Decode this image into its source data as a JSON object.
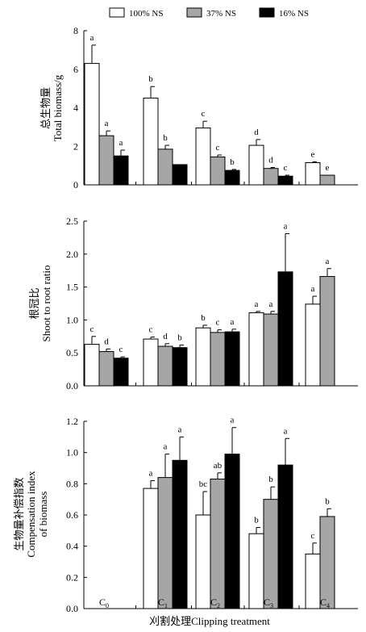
{
  "legend": {
    "items": [
      {
        "label": "100% NS",
        "color": "#ffffff"
      },
      {
        "label": "37% NS",
        "color": "#a6a6a6"
      },
      {
        "label": "16% NS",
        "color": "#000000"
      }
    ]
  },
  "x_axis": {
    "title": "刈割处理Clipping  treatment",
    "categories": [
      {
        "main": "C",
        "sub": "0"
      },
      {
        "main": "C",
        "sub": "1"
      },
      {
        "main": "C",
        "sub": "2"
      },
      {
        "main": "C",
        "sub": "3"
      },
      {
        "main": "C",
        "sub": "4"
      }
    ]
  },
  "chart_data": [
    {
      "type": "bar",
      "ylabel_cn": "总生物量",
      "ylabel_en": "Total biomass/g",
      "ylim": [
        0,
        8
      ],
      "yticks": [
        "0",
        "2",
        "4",
        "6",
        "8"
      ],
      "categories": [
        "C0",
        "C1",
        "C2",
        "C3",
        "C4"
      ],
      "series": [
        {
          "name": "100% NS",
          "values": [
            6.3,
            4.5,
            2.95,
            2.05,
            1.15
          ],
          "errors": [
            0.95,
            0.6,
            0.35,
            0.3,
            0.05
          ],
          "labels": [
            "a",
            "b",
            "c",
            "d",
            "e"
          ]
        },
        {
          "name": "37% NS",
          "values": [
            2.55,
            1.85,
            1.45,
            0.85,
            0.5
          ],
          "errors": [
            0.25,
            0.2,
            0.1,
            0.05,
            0.0
          ],
          "labels": [
            "a",
            "b",
            "c",
            "d",
            "e"
          ]
        },
        {
          "name": "16% NS",
          "values": [
            1.5,
            1.05,
            0.75,
            0.45,
            null
          ],
          "errors": [
            0.3,
            0.0,
            0.05,
            0.05,
            null
          ],
          "labels": [
            "a",
            "",
            "b",
            "c",
            ""
          ]
        }
      ]
    },
    {
      "type": "bar",
      "ylabel_cn": "根冠比",
      "ylabel_en": "Shoot to root ratio",
      "ylim": [
        0,
        2.5
      ],
      "yticks": [
        "0.0",
        "0.5",
        "1.0",
        "1.5",
        "2.0",
        "2.5"
      ],
      "categories": [
        "C0",
        "C1",
        "C2",
        "C3",
        "C4"
      ],
      "series": [
        {
          "name": "100% NS",
          "values": [
            0.63,
            0.71,
            0.88,
            1.11,
            1.24
          ],
          "errors": [
            0.12,
            0.03,
            0.04,
            0.02,
            0.12
          ],
          "labels": [
            "c",
            "c",
            "b",
            "a",
            "a"
          ]
        },
        {
          "name": "37% NS",
          "values": [
            0.52,
            0.6,
            0.81,
            1.09,
            1.66
          ],
          "errors": [
            0.04,
            0.04,
            0.04,
            0.04,
            0.12
          ],
          "labels": [
            "d",
            "d",
            "c",
            "a",
            "a"
          ]
        },
        {
          "name": "16% NS",
          "values": [
            0.42,
            0.58,
            0.82,
            1.73,
            null
          ],
          "errors": [
            0.02,
            0.04,
            0.04,
            0.58,
            null
          ],
          "labels": [
            "c",
            "b",
            "a",
            "a",
            ""
          ]
        }
      ]
    },
    {
      "type": "bar",
      "ylabel_cn": "生物量补偿指数",
      "ylabel_en1": "Compensation index",
      "ylabel_en2": "of biomass",
      "ylim": [
        0,
        1.2
      ],
      "yticks": [
        "0.0",
        "0.2",
        "0.4",
        "0.6",
        "0.8",
        "1.0",
        "1.2"
      ],
      "categories": [
        "C0",
        "C1",
        "C2",
        "C3",
        "C4"
      ],
      "series": [
        {
          "name": "100% NS",
          "values": [
            null,
            0.77,
            0.6,
            0.48,
            0.35
          ],
          "errors": [
            null,
            0.05,
            0.15,
            0.04,
            0.07
          ],
          "labels": [
            "",
            "a",
            "bc",
            "b",
            "c"
          ]
        },
        {
          "name": "37% NS",
          "values": [
            null,
            0.84,
            0.83,
            0.7,
            0.59
          ],
          "errors": [
            null,
            0.15,
            0.04,
            0.08,
            0.05
          ],
          "labels": [
            "",
            "a",
            "ab",
            "b",
            "b"
          ]
        },
        {
          "name": "16% NS",
          "values": [
            null,
            0.95,
            0.99,
            0.92,
            null
          ],
          "errors": [
            null,
            0.15,
            0.17,
            0.17,
            null
          ],
          "labels": [
            "",
            "a",
            "a",
            "a",
            ""
          ]
        }
      ]
    }
  ]
}
